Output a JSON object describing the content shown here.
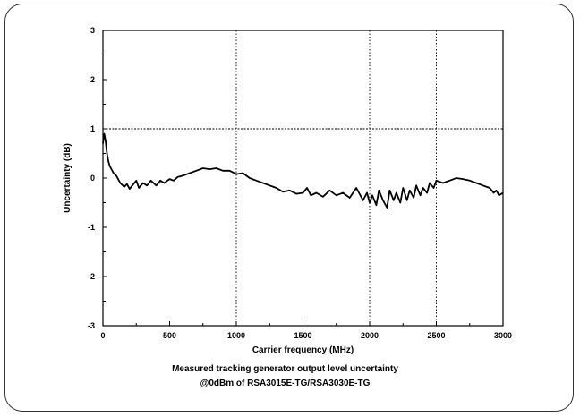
{
  "chart_data": {
    "type": "line",
    "title": "",
    "xlabel": "Carrier frequency (MHz)",
    "ylabel": "Uncertainty (dB)",
    "xlim": [
      0,
      3000
    ],
    "ylim": [
      -3,
      3
    ],
    "x_ticks": [
      "0",
      "500",
      "1000",
      "1500",
      "2000",
      "2500",
      "3000"
    ],
    "y_ticks": [
      "-3",
      "-2",
      "-1",
      "0",
      "1",
      "2",
      "3"
    ],
    "reference_lines": {
      "horizontal_y": 1,
      "vertical_x": [
        1000,
        2000,
        2500
      ]
    },
    "caption_lines": [
      "Measured tracking generator output level uncertainty",
      "@0dBm of RSA3015E-TG/RSA3030E-TG"
    ],
    "series": [
      {
        "x": [
          0,
          10,
          20,
          30,
          40,
          50,
          60,
          80,
          100,
          130,
          160,
          180,
          200,
          220,
          250,
          270,
          300,
          330,
          360,
          400,
          430,
          460,
          500,
          530,
          560,
          600,
          650,
          700,
          750,
          800,
          850,
          900,
          950,
          1000,
          1050,
          1100,
          1150,
          1200,
          1250,
          1300,
          1350,
          1400,
          1450,
          1500,
          1530,
          1560,
          1600,
          1650,
          1700,
          1750,
          1800,
          1850,
          1900,
          1950,
          1980,
          2000,
          2020,
          2050,
          2070,
          2100,
          2130,
          2150,
          2180,
          2200,
          2230,
          2250,
          2280,
          2300,
          2330,
          2350,
          2380,
          2400,
          2430,
          2450,
          2480,
          2500,
          2550,
          2600,
          2650,
          2700,
          2750,
          2800,
          2850,
          2900,
          2930,
          2950,
          2970,
          3000
        ],
        "y": [
          0.7,
          0.9,
          0.75,
          0.5,
          0.35,
          0.25,
          0.2,
          0.1,
          0.05,
          -0.1,
          -0.18,
          -0.12,
          -0.22,
          -0.15,
          -0.05,
          -0.2,
          -0.1,
          -0.15,
          -0.05,
          -0.15,
          -0.05,
          -0.1,
          -0.02,
          -0.05,
          0.02,
          0.05,
          0.1,
          0.15,
          0.2,
          0.18,
          0.2,
          0.15,
          0.15,
          0.08,
          0.1,
          0.0,
          -0.05,
          -0.1,
          -0.15,
          -0.2,
          -0.28,
          -0.25,
          -0.32,
          -0.3,
          -0.2,
          -0.35,
          -0.3,
          -0.38,
          -0.25,
          -0.35,
          -0.3,
          -0.4,
          -0.2,
          -0.45,
          -0.3,
          -0.5,
          -0.35,
          -0.55,
          -0.25,
          -0.45,
          -0.6,
          -0.25,
          -0.45,
          -0.3,
          -0.5,
          -0.2,
          -0.45,
          -0.25,
          -0.4,
          -0.15,
          -0.35,
          -0.2,
          -0.3,
          -0.1,
          -0.2,
          -0.05,
          -0.1,
          -0.05,
          0.0,
          -0.02,
          -0.05,
          -0.1,
          -0.15,
          -0.2,
          -0.3,
          -0.25,
          -0.35,
          -0.3
        ]
      }
    ]
  }
}
